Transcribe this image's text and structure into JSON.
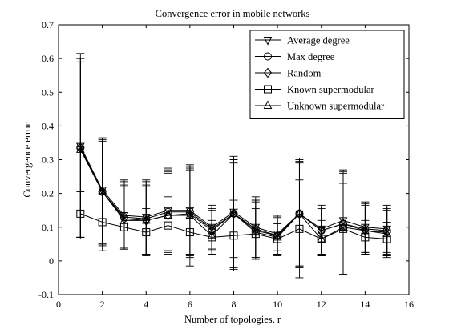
{
  "chart_data": {
    "type": "line",
    "title": "Convergence error in mobile networks",
    "xlabel": "Number of topologies, r",
    "ylabel": "Convergence error",
    "xlim": [
      0,
      16
    ],
    "ylim": [
      -0.1,
      0.7
    ],
    "xticks": [
      0,
      2,
      4,
      6,
      8,
      10,
      12,
      14,
      16
    ],
    "yticks": [
      -0.1,
      0,
      0.1,
      0.2,
      0.3,
      0.4,
      0.5,
      0.6,
      0.7
    ],
    "grid": false,
    "legend_position": "top-right",
    "x": [
      1,
      2,
      3,
      4,
      5,
      6,
      7,
      8,
      9,
      10,
      11,
      12,
      13,
      14,
      15
    ],
    "series": [
      {
        "name": "Average degree",
        "marker": "triangle-down",
        "values": [
          0.34,
          0.21,
          0.135,
          0.13,
          0.15,
          0.15,
          0.1,
          0.145,
          0.1,
          0.08,
          0.14,
          0.095,
          0.12,
          0.1,
          0.095
        ],
        "err_low": [
          0.07,
          0.05,
          0.04,
          0.02,
          0.03,
          0.02,
          0.035,
          0.01,
          0.01,
          0.03,
          -0.015,
          0.02,
          0.095,
          0.025,
          0.025
        ],
        "err_high": [
          0.615,
          0.365,
          0.24,
          0.24,
          0.275,
          0.285,
          0.165,
          0.31,
          0.19,
          0.135,
          0.305,
          0.165,
          0.27,
          0.175,
          0.165
        ]
      },
      {
        "name": "Max degree",
        "marker": "circle",
        "values": [
          0.335,
          0.205,
          0.13,
          0.125,
          0.145,
          0.145,
          0.095,
          0.14,
          0.095,
          0.075,
          0.14,
          0.09,
          0.11,
          0.095,
          0.09
        ],
        "err_low": [
          0.07,
          0.05,
          0.04,
          0.02,
          0.03,
          0.02,
          0.035,
          -0.02,
          0.01,
          0.02,
          -0.015,
          0.02,
          0.09,
          0.025,
          0.02
        ],
        "err_high": [
          0.6,
          0.36,
          0.235,
          0.235,
          0.27,
          0.28,
          0.16,
          0.3,
          0.18,
          0.13,
          0.3,
          0.16,
          0.265,
          0.17,
          0.16
        ]
      },
      {
        "name": "Random",
        "marker": "diamond",
        "values": [
          0.335,
          0.205,
          0.125,
          0.12,
          0.135,
          0.14,
          0.09,
          0.14,
          0.09,
          0.075,
          0.14,
          0.09,
          0.11,
          0.09,
          0.085
        ],
        "err_low": [
          0.07,
          0.05,
          0.035,
          0.02,
          0.03,
          0.015,
          0.03,
          -0.02,
          0.005,
          0.02,
          -0.02,
          0.015,
          -0.04,
          0.02,
          0.015
        ],
        "err_high": [
          0.6,
          0.36,
          0.225,
          0.225,
          0.265,
          0.275,
          0.155,
          0.3,
          0.18,
          0.13,
          0.295,
          0.16,
          0.26,
          0.165,
          0.155
        ]
      },
      {
        "name": "Known supermodular",
        "marker": "square",
        "values": [
          0.14,
          0.115,
          0.1,
          0.085,
          0.105,
          0.085,
          0.07,
          0.075,
          0.08,
          0.065,
          0.095,
          0.065,
          0.095,
          0.07,
          0.065
        ],
        "err_low": [
          0.07,
          0.03,
          0.035,
          0.02,
          0.02,
          -0.015,
          0.02,
          -0.03,
          0.005,
          0.02,
          -0.05,
          0.015,
          -0.04,
          0.02,
          0.015
        ],
        "err_high": [
          0.205,
          0.2,
          0.16,
          0.155,
          0.19,
          0.16,
          0.12,
          0.18,
          0.155,
          0.11,
          0.24,
          0.12,
          0.23,
          0.12,
          0.115
        ]
      },
      {
        "name": "Unknown supermodular",
        "marker": "triangle-up",
        "values": [
          0.33,
          0.205,
          0.12,
          0.12,
          0.135,
          0.135,
          0.075,
          0.14,
          0.085,
          0.07,
          0.14,
          0.065,
          0.1,
          0.09,
          0.08
        ],
        "err_low": [
          0.065,
          0.045,
          0.035,
          0.015,
          0.025,
          0.01,
          0.02,
          -0.025,
          0.005,
          0.015,
          -0.02,
          0.015,
          -0.04,
          0.02,
          0.01
        ],
        "err_high": [
          0.59,
          0.355,
          0.22,
          0.22,
          0.26,
          0.27,
          0.15,
          0.29,
          0.175,
          0.125,
          0.29,
          0.155,
          0.255,
          0.16,
          0.15
        ]
      }
    ]
  }
}
